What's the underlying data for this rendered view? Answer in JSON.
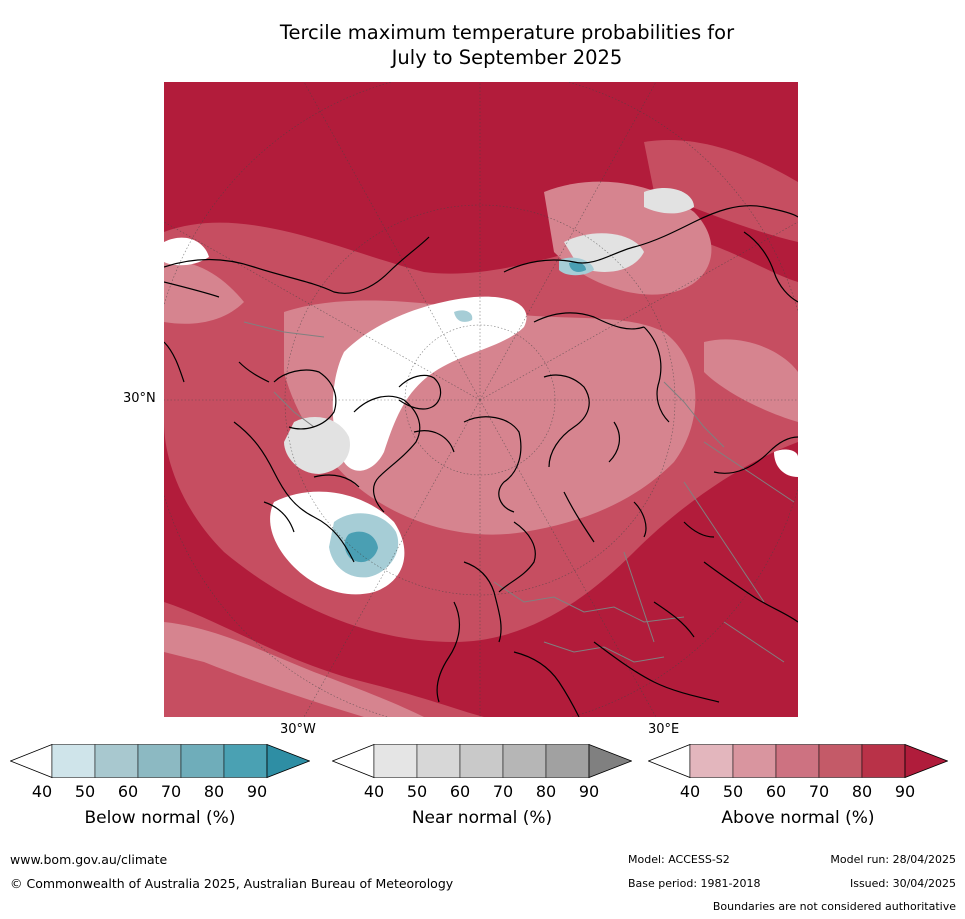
{
  "title_line1": "Tercile maximum temperature probabilities for",
  "title_line2": "July to September 2025",
  "map": {
    "lat_label": "30°N",
    "lon_label_west": "30°W",
    "lon_label_east": "30°E",
    "colors": {
      "above_dark": "#b21c3b",
      "above_mid": "#c64e61",
      "above_light": "#d6848f",
      "near_white": "#ffffff",
      "near_grey": "#e2e2e2",
      "below_light": "#a6cdd6",
      "below_dark": "#4a9fb3",
      "coast": "#000000",
      "border": "#808080"
    }
  },
  "colorbars": [
    {
      "label": "Below normal (%)",
      "ticks": [
        "40",
        "50",
        "60",
        "70",
        "80",
        "90"
      ],
      "colors": [
        "#cfe4ea",
        "#a8c8cf",
        "#8cb9c2",
        "#6fadba",
        "#4aa1b3",
        "#2e8ea4"
      ]
    },
    {
      "label": "Near normal (%)",
      "ticks": [
        "40",
        "50",
        "60",
        "70",
        "80",
        "90"
      ],
      "colors": [
        "#e5e5e5",
        "#d7d7d7",
        "#c9c9c9",
        "#b6b6b6",
        "#a1a1a1",
        "#808080"
      ]
    },
    {
      "label": "Above normal (%)",
      "ticks": [
        "40",
        "50",
        "60",
        "70",
        "80",
        "90"
      ],
      "colors": [
        "#e3b6bd",
        "#d9959f",
        "#cd7281",
        "#c45a68",
        "#b93248",
        "#b01c3b"
      ]
    }
  ],
  "footer": {
    "website": "www.bom.gov.au/climate",
    "copyright": "© Commonwealth of Australia 2025, Australian Bureau of Meteorology",
    "model": "Model: ACCESS-S2",
    "model_run": "Model run: 28/04/2025",
    "base_period": "Base period: 1981-2018",
    "issued": "Issued: 30/04/2025",
    "boundaries": "Boundaries are not considered authoritative"
  }
}
